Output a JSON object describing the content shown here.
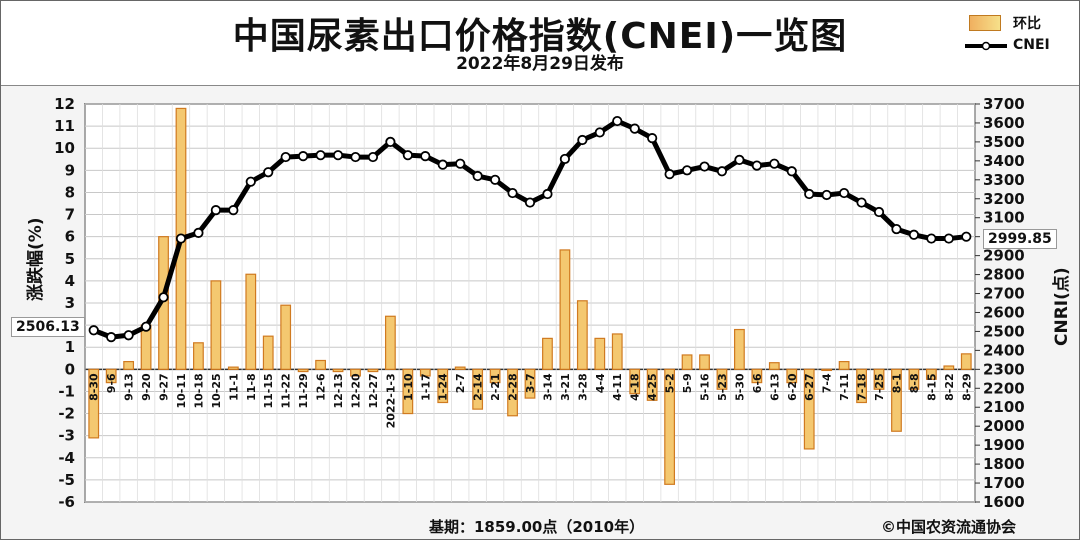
{
  "header": {
    "title": "中国尿素出口价格指数(CNEI)一览图",
    "subtitle": "2022年8月29日发布"
  },
  "legend": {
    "bar_label": "环比",
    "line_label": "CNEI"
  },
  "footer": {
    "base": "基期：1859.00点（2010年）",
    "copyright": "©中国农资流通协会"
  },
  "callouts": {
    "start": "2506.13",
    "end": "2999.85"
  },
  "colors": {
    "bar_fill": "#f4c870",
    "bar_stroke": "#d07a20",
    "line": "#000000",
    "marker": "#ffffff"
  },
  "chart_data": {
    "type": "bar+line",
    "categories": [
      "8-30",
      "9-6",
      "9-13",
      "9-20",
      "9-27",
      "10-11",
      "10-18",
      "10-25",
      "11-1",
      "11-8",
      "11-15",
      "11-22",
      "11-29",
      "12-6",
      "12-13",
      "12-20",
      "12-27",
      "2022-1-3",
      "1-10",
      "1-17",
      "1-24",
      "2-7",
      "2-14",
      "2-21",
      "2-28",
      "3-7",
      "3-14",
      "3-21",
      "3-28",
      "4-4",
      "4-11",
      "4-18",
      "4-25",
      "5-2",
      "5-9",
      "5-16",
      "5-23",
      "5-30",
      "6-6",
      "6-13",
      "6-20",
      "6-27",
      "7-4",
      "7-11",
      "7-18",
      "7-25",
      "8-1",
      "8-8",
      "8-15",
      "8-22",
      "8-29"
    ],
    "series": [
      {
        "name": "环比",
        "axis": "left",
        "type": "bar",
        "values": [
          -3.1,
          -0.6,
          0.35,
          2.0,
          6.0,
          11.8,
          1.2,
          4.0,
          0.1,
          4.3,
          1.5,
          2.9,
          -0.1,
          0.4,
          -0.1,
          -0.3,
          -0.1,
          2.4,
          -2.0,
          -0.3,
          -1.5,
          0.1,
          -1.8,
          -0.6,
          -2.1,
          -1.3,
          1.4,
          5.4,
          3.1,
          1.4,
          1.6,
          -1.1,
          -1.4,
          -5.2,
          0.65,
          0.65,
          -0.9,
          1.8,
          -0.6,
          0.3,
          -0.6,
          -3.6,
          -0.05,
          0.35,
          -1.5,
          -0.9,
          -2.8,
          -0.9,
          -0.45,
          0.15,
          0.7
        ]
      },
      {
        "name": "CNEI",
        "axis": "right",
        "type": "line",
        "values": [
          2506.13,
          2470,
          2480,
          2525,
          2680,
          2990,
          3020,
          3140,
          3140,
          3290,
          3340,
          3420,
          3425,
          3430,
          3430,
          3420,
          3420,
          3500,
          3430,
          3425,
          3380,
          3385,
          3320,
          3300,
          3230,
          3180,
          3225,
          3410,
          3510,
          3550,
          3610,
          3570,
          3520,
          3330,
          3350,
          3370,
          3345,
          3405,
          3375,
          3385,
          3345,
          3225,
          3220,
          3230,
          3180,
          3130,
          3040,
          3010,
          2990,
          2990,
          2999.85
        ]
      }
    ],
    "y_left": {
      "label": "涨跌幅(%)",
      "range": [
        -6,
        12
      ],
      "ticks": [
        -6,
        -5,
        -4,
        -3,
        -2,
        -1,
        0,
        1,
        2,
        3,
        4,
        5,
        6,
        7,
        8,
        9,
        10,
        11,
        12
      ]
    },
    "y_right": {
      "label": "CNRI(点)",
      "range": [
        1600,
        3700
      ],
      "ticks": [
        1600,
        1700,
        1800,
        1900,
        2000,
        2100,
        2200,
        2300,
        2400,
        2500,
        2600,
        2700,
        2800,
        2900,
        3000,
        3100,
        3200,
        3300,
        3400,
        3500,
        3600,
        3700
      ]
    },
    "grid": true,
    "legend_position": "top-right"
  },
  "axis_labels": {
    "y_left": "涨跌幅(%)",
    "y_right": "CNRI(点)"
  }
}
